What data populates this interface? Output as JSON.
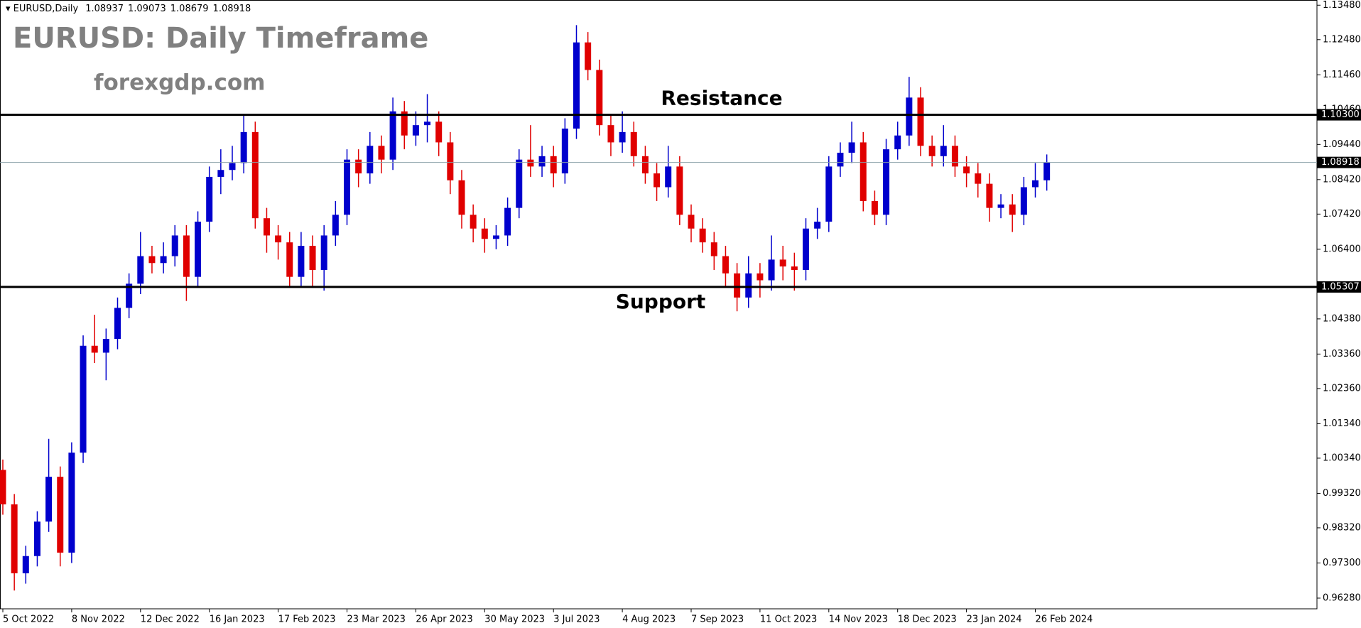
{
  "chart_data": {
    "type": "candlestick",
    "symbol_info": "EURUSD,Daily",
    "header_ohlc": [
      1.08937,
      1.09073,
      1.08679,
      1.08918
    ],
    "title": "EURUSD: Daily Timeframe",
    "subtitle": "forexgdp.com",
    "up_color": "#0000cd",
    "down_color": "#e00000",
    "ylim": [
      0.9597,
      1.1363
    ],
    "yticks": [
      {
        "value": 1.1348,
        "label": "1.13480"
      },
      {
        "value": 1.1248,
        "label": "1.12480"
      },
      {
        "value": 1.1146,
        "label": "1.11460"
      },
      {
        "value": 1.1046,
        "label": "1.10460"
      },
      {
        "value": 1.0944,
        "label": "1.09440"
      },
      {
        "value": 1.0842,
        "label": "1.08420"
      },
      {
        "value": 1.0742,
        "label": "1.07420"
      },
      {
        "value": 1.064,
        "label": "1.06400"
      },
      {
        "value": 1.0438,
        "label": "1.04380"
      },
      {
        "value": 1.0336,
        "label": "1.03360"
      },
      {
        "value": 1.0236,
        "label": "1.02360"
      },
      {
        "value": 1.0134,
        "label": "1.01340"
      },
      {
        "value": 1.0034,
        "label": "1.00340"
      },
      {
        "value": 0.9932,
        "label": "0.99320"
      },
      {
        "value": 0.9832,
        "label": "0.98320"
      },
      {
        "value": 0.973,
        "label": "0.97300"
      },
      {
        "value": 0.9628,
        "label": "0.96280"
      }
    ],
    "levels": [
      {
        "name": "Resistance",
        "value": 1.103,
        "label": "1.10300",
        "color": "#000000"
      },
      {
        "name": "Support",
        "value": 1.05307,
        "label": "1.05307",
        "color": "#000000"
      }
    ],
    "current_price": {
      "value": 1.08918,
      "label": "1.08918",
      "color": "#8aa0a8"
    },
    "categories": [
      "5 Oct 2022",
      null,
      null,
      null,
      null,
      null,
      "8 Nov 2022",
      null,
      null,
      null,
      null,
      null,
      "12 Dec 2022",
      null,
      null,
      null,
      null,
      null,
      "16 Jan 2023",
      null,
      null,
      null,
      null,
      null,
      "17 Feb 2023",
      null,
      null,
      null,
      null,
      null,
      "23 Mar 2023",
      null,
      null,
      null,
      null,
      null,
      "26 Apr 2023",
      null,
      null,
      null,
      null,
      null,
      "30 May 2023",
      null,
      null,
      null,
      null,
      null,
      "3 Jul 2023",
      null,
      null,
      null,
      null,
      null,
      "4 Aug 2023",
      null,
      null,
      null,
      null,
      null,
      "7 Sep 2023",
      null,
      null,
      null,
      null,
      null,
      "11 Oct 2023",
      null,
      null,
      null,
      null,
      null,
      "14 Nov 2023",
      null,
      null,
      null,
      null,
      null,
      "18 Dec 2023",
      null,
      null,
      null,
      null,
      null,
      "23 Jan 2024",
      null,
      null,
      null,
      null,
      null,
      "26 Feb 2024",
      null
    ],
    "ohlc": [
      [
        1.0,
        1.003,
        0.987,
        0.99
      ],
      [
        0.99,
        0.993,
        0.965,
        0.97
      ],
      [
        0.97,
        0.978,
        0.967,
        0.975
      ],
      [
        0.975,
        0.988,
        0.972,
        0.985
      ],
      [
        0.985,
        1.009,
        0.982,
        0.998
      ],
      [
        0.998,
        1.001,
        0.972,
        0.976
      ],
      [
        0.976,
        1.008,
        0.973,
        1.005
      ],
      [
        1.005,
        1.039,
        1.002,
        1.036
      ],
      [
        1.036,
        1.045,
        1.031,
        1.034
      ],
      [
        1.034,
        1.041,
        1.026,
        1.038
      ],
      [
        1.038,
        1.05,
        1.035,
        1.047
      ],
      [
        1.047,
        1.057,
        1.044,
        1.054
      ],
      [
        1.054,
        1.069,
        1.051,
        1.062
      ],
      [
        1.062,
        1.065,
        1.057,
        1.06
      ],
      [
        1.06,
        1.066,
        1.057,
        1.062
      ],
      [
        1.062,
        1.071,
        1.059,
        1.068
      ],
      [
        1.068,
        1.071,
        1.049,
        1.056
      ],
      [
        1.056,
        1.075,
        1.053,
        1.072
      ],
      [
        1.072,
        1.088,
        1.069,
        1.085
      ],
      [
        1.085,
        1.093,
        1.08,
        1.087
      ],
      [
        1.087,
        1.094,
        1.084,
        1.089
      ],
      [
        1.089,
        1.103,
        1.086,
        1.098
      ],
      [
        1.098,
        1.101,
        1.07,
        1.073
      ],
      [
        1.073,
        1.076,
        1.063,
        1.068
      ],
      [
        1.068,
        1.071,
        1.061,
        1.066
      ],
      [
        1.066,
        1.069,
        1.053,
        1.056
      ],
      [
        1.056,
        1.069,
        1.053,
        1.065
      ],
      [
        1.065,
        1.068,
        1.053,
        1.058
      ],
      [
        1.058,
        1.071,
        1.052,
        1.068
      ],
      [
        1.068,
        1.078,
        1.065,
        1.074
      ],
      [
        1.074,
        1.093,
        1.071,
        1.09
      ],
      [
        1.09,
        1.093,
        1.082,
        1.086
      ],
      [
        1.086,
        1.098,
        1.083,
        1.094
      ],
      [
        1.094,
        1.097,
        1.086,
        1.09
      ],
      [
        1.09,
        1.108,
        1.087,
        1.104
      ],
      [
        1.104,
        1.107,
        1.093,
        1.097
      ],
      [
        1.097,
        1.104,
        1.094,
        1.1
      ],
      [
        1.1,
        1.109,
        1.095,
        1.101
      ],
      [
        1.101,
        1.104,
        1.091,
        1.095
      ],
      [
        1.095,
        1.098,
        1.08,
        1.084
      ],
      [
        1.084,
        1.087,
        1.07,
        1.074
      ],
      [
        1.074,
        1.077,
        1.066,
        1.07
      ],
      [
        1.07,
        1.073,
        1.063,
        1.067
      ],
      [
        1.067,
        1.071,
        1.064,
        1.068
      ],
      [
        1.068,
        1.079,
        1.065,
        1.076
      ],
      [
        1.076,
        1.093,
        1.073,
        1.09
      ],
      [
        1.09,
        1.1,
        1.085,
        1.088
      ],
      [
        1.088,
        1.094,
        1.085,
        1.091
      ],
      [
        1.091,
        1.094,
        1.082,
        1.086
      ],
      [
        1.086,
        1.102,
        1.083,
        1.099
      ],
      [
        1.099,
        1.129,
        1.096,
        1.124
      ],
      [
        1.124,
        1.127,
        1.113,
        1.116
      ],
      [
        1.116,
        1.119,
        1.097,
        1.1
      ],
      [
        1.1,
        1.103,
        1.091,
        1.095
      ],
      [
        1.095,
        1.104,
        1.092,
        1.098
      ],
      [
        1.098,
        1.101,
        1.088,
        1.091
      ],
      [
        1.091,
        1.094,
        1.083,
        1.086
      ],
      [
        1.086,
        1.089,
        1.078,
        1.082
      ],
      [
        1.082,
        1.094,
        1.079,
        1.088
      ],
      [
        1.088,
        1.091,
        1.071,
        1.074
      ],
      [
        1.074,
        1.077,
        1.066,
        1.07
      ],
      [
        1.07,
        1.073,
        1.063,
        1.066
      ],
      [
        1.066,
        1.069,
        1.058,
        1.062
      ],
      [
        1.062,
        1.065,
        1.053,
        1.057
      ],
      [
        1.057,
        1.06,
        1.046,
        1.05
      ],
      [
        1.05,
        1.062,
        1.047,
        1.057
      ],
      [
        1.057,
        1.06,
        1.05,
        1.055
      ],
      [
        1.055,
        1.068,
        1.052,
        1.061
      ],
      [
        1.061,
        1.065,
        1.055,
        1.059
      ],
      [
        1.059,
        1.063,
        1.052,
        1.058
      ],
      [
        1.058,
        1.073,
        1.055,
        1.07
      ],
      [
        1.07,
        1.076,
        1.067,
        1.072
      ],
      [
        1.072,
        1.091,
        1.069,
        1.088
      ],
      [
        1.088,
        1.095,
        1.085,
        1.092
      ],
      [
        1.092,
        1.101,
        1.089,
        1.095
      ],
      [
        1.095,
        1.098,
        1.075,
        1.078
      ],
      [
        1.078,
        1.081,
        1.071,
        1.074
      ],
      [
        1.074,
        1.096,
        1.071,
        1.093
      ],
      [
        1.093,
        1.101,
        1.09,
        1.097
      ],
      [
        1.097,
        1.114,
        1.094,
        1.108
      ],
      [
        1.108,
        1.111,
        1.091,
        1.094
      ],
      [
        1.094,
        1.097,
        1.088,
        1.091
      ],
      [
        1.091,
        1.1,
        1.088,
        1.094
      ],
      [
        1.094,
        1.097,
        1.085,
        1.088
      ],
      [
        1.088,
        1.091,
        1.082,
        1.086
      ],
      [
        1.086,
        1.089,
        1.079,
        1.083
      ],
      [
        1.083,
        1.086,
        1.072,
        1.076
      ],
      [
        1.076,
        1.08,
        1.073,
        1.077
      ],
      [
        1.077,
        1.08,
        1.069,
        1.074
      ],
      [
        1.074,
        1.085,
        1.071,
        1.082
      ],
      [
        1.082,
        1.089,
        1.079,
        1.084
      ],
      [
        1.084,
        1.0915,
        1.081,
        1.08918
      ]
    ]
  }
}
